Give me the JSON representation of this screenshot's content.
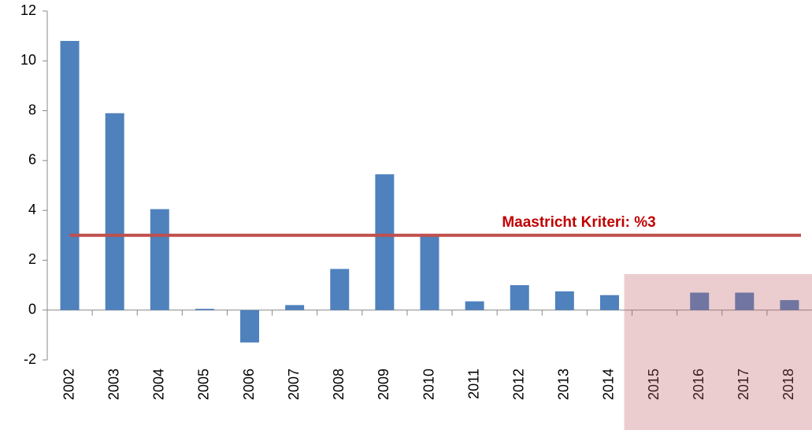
{
  "chart_data": {
    "type": "bar",
    "categories": [
      "2002",
      "2003",
      "2004",
      "2005",
      "2006",
      "2007",
      "2008",
      "2009",
      "2010",
      "2011",
      "2012",
      "2013",
      "2014",
      "2015",
      "2016",
      "2017",
      "2018"
    ],
    "values": [
      10.8,
      7.9,
      4.05,
      0.05,
      -1.3,
      0.2,
      1.65,
      5.45,
      2.95,
      0.35,
      1.0,
      0.75,
      0.6,
      0,
      0.7,
      0.7,
      0.4
    ],
    "color": "#4f81bd",
    "ylim": [
      -2,
      12
    ],
    "yticks": [
      -2,
      0,
      2,
      4,
      6,
      8,
      10,
      12
    ],
    "reference_line": {
      "value": 3,
      "label": "Maastricht Kriteri: %3",
      "color": "#c0504d"
    }
  }
}
